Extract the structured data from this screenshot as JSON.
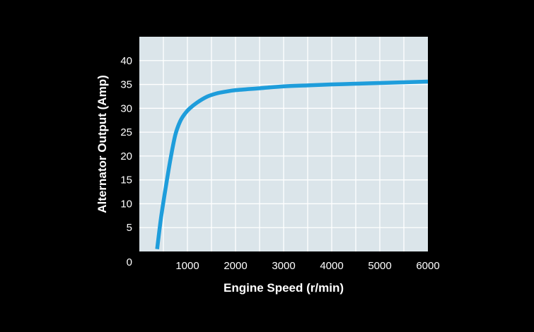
{
  "chart_data": {
    "type": "line",
    "title": "",
    "xlabel": "Engine Speed (r/min)",
    "ylabel": "Alternator Output (Amp)",
    "xlim": [
      0,
      6000
    ],
    "ylim": [
      0,
      45
    ],
    "x_ticks": [
      1000,
      2000,
      3000,
      4000,
      5000,
      6000
    ],
    "y_ticks": [
      5,
      10,
      15,
      20,
      25,
      30,
      35,
      40
    ],
    "origin_label": "0",
    "grid": true,
    "background_color": "#000000",
    "plot_color": "#dbe5ea",
    "grid_color": "#ffffff",
    "series": [
      {
        "color": "#1e9ddb",
        "x": [
          370,
          450,
          550,
          650,
          750,
          850,
          950,
          1050,
          1200,
          1400,
          1600,
          1800,
          2000,
          2500,
          3000,
          3500,
          4000,
          4500,
          5000,
          5500,
          6000
        ],
        "y": [
          0.5,
          7,
          13.5,
          19.5,
          24.5,
          27.3,
          28.9,
          30.0,
          31.2,
          32.4,
          33.1,
          33.5,
          33.8,
          34.2,
          34.6,
          34.8,
          35.0,
          35.15,
          35.3,
          35.45,
          35.6
        ]
      }
    ]
  }
}
